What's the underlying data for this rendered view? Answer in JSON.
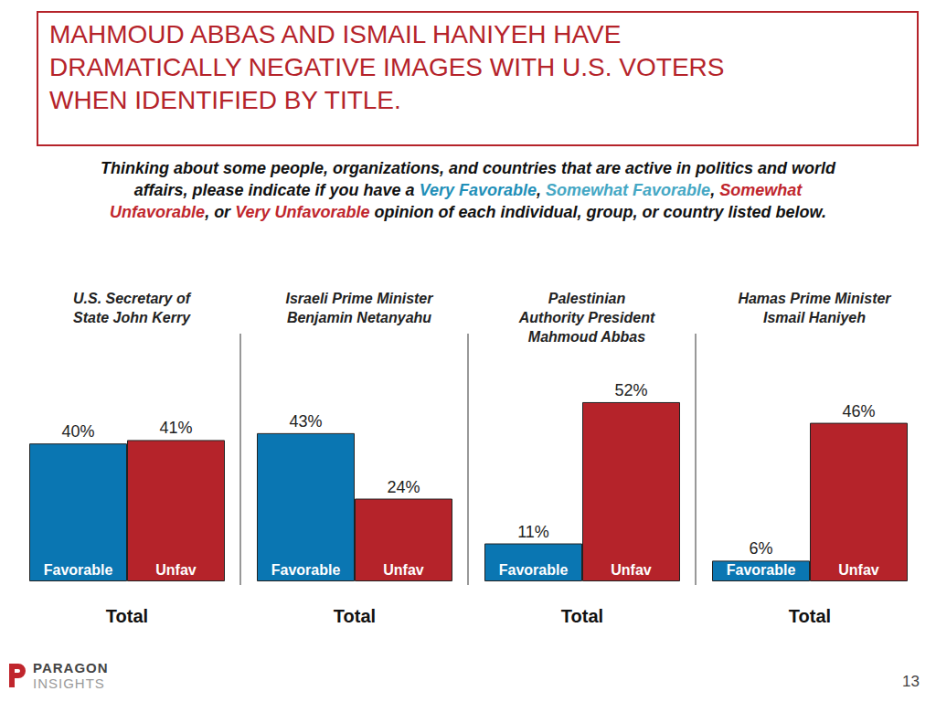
{
  "title": "MAHMOUD ABBAS AND ISMAIL HANIYEH HAVE\nDRAMATICALLY NEGATIVE IMAGES WITH U.S. VOTERS\nWHEN IDENTIFIED BY TITLE.",
  "question": [
    {
      "text": "Thinking about some people, organizations, and countries that are active in politics and world affairs, please indicate if you have a "
    },
    {
      "text": "Very Favorable",
      "color": "#1f8fb8"
    },
    {
      "text": ", "
    },
    {
      "text": "Somewhat Favorable",
      "color": "#45a7c4"
    },
    {
      "text": ", "
    },
    {
      "text": "Somewhat Unfavorable",
      "color": "#c0262d"
    },
    {
      "text": ", or "
    },
    {
      "text": "Very Unfavorable",
      "color": "#c0262d"
    },
    {
      "text": " opinion of each individual, group, or country listed below."
    }
  ],
  "footer": {
    "logo": [
      "PARAGON",
      "INSIGHTS"
    ],
    "page": 13
  },
  "chart_data": [
    {
      "type": "bar",
      "title": "U.S. Secretary of\nState John Kerry",
      "xlabel": "Total",
      "categories": [
        "Favorable",
        "Unfav"
      ],
      "values": [
        40,
        41
      ],
      "value_labels": [
        "40%",
        "41%"
      ],
      "colors": [
        "#0a76b2",
        "#b5232a"
      ],
      "ylim": [
        0,
        60
      ],
      "data_labels": true,
      "tick_labels": "x"
    },
    {
      "type": "bar",
      "title": "Israeli Prime Minister\nBenjamin Netanyahu",
      "xlabel": "Total",
      "categories": [
        "Favorable",
        "Unfav"
      ],
      "values": [
        43,
        24
      ],
      "value_labels": [
        "43%",
        "24%"
      ],
      "colors": [
        "#0a76b2",
        "#b5232a"
      ],
      "ylim": [
        0,
        60
      ],
      "data_labels": true,
      "tick_labels": "x"
    },
    {
      "type": "bar",
      "title": "Palestinian\nAuthority President\nMahmoud Abbas",
      "xlabel": "Total",
      "categories": [
        "Favorable",
        "Unfav"
      ],
      "values": [
        11,
        52
      ],
      "value_labels": [
        "11%",
        "52%"
      ],
      "colors": [
        "#0a76b2",
        "#b5232a"
      ],
      "ylim": [
        0,
        60
      ],
      "data_labels": true,
      "tick_labels": "x"
    },
    {
      "type": "bar",
      "title": "Hamas Prime Minister\nIsmail Haniyeh",
      "xlabel": "Total",
      "categories": [
        "Favorable",
        "Unfav"
      ],
      "values": [
        6,
        46
      ],
      "value_labels": [
        "6%",
        "46%"
      ],
      "colors": [
        "#0a76b2",
        "#b5232a"
      ],
      "ylim": [
        0,
        60
      ],
      "data_labels": true,
      "tick_labels": "x"
    }
  ]
}
